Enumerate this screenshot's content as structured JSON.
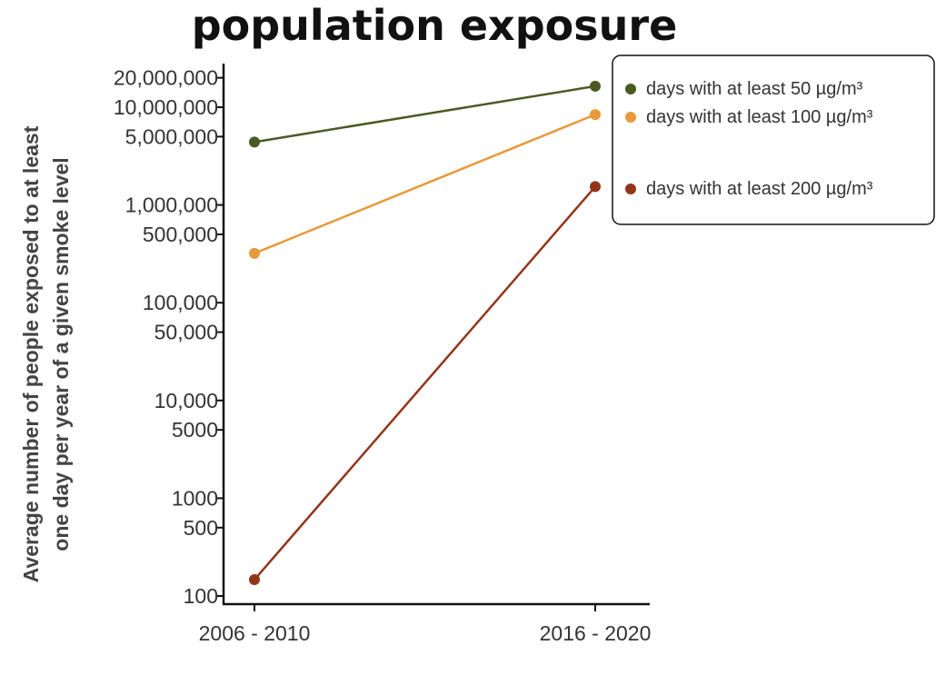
{
  "chart_data": {
    "type": "line",
    "title": "population exposure",
    "xlabel": "",
    "ylabel": "Average number of people exposed to at least one day per year of a given smoke level",
    "ylabel_lines": [
      "Average number of people exposed to at least",
      "one day per year of a given smoke level"
    ],
    "y_scale": "log",
    "ylim": [
      100,
      20000000
    ],
    "y_ticks": [
      {
        "value": 20000000,
        "label": "20,000,000"
      },
      {
        "value": 10000000,
        "label": "10,000,000"
      },
      {
        "value": 5000000,
        "label": "5,000,000"
      },
      {
        "value": 1000000,
        "label": "1,000,000"
      },
      {
        "value": 500000,
        "label": "500,000"
      },
      {
        "value": 100000,
        "label": "100,000"
      },
      {
        "value": 50000,
        "label": "50,000"
      },
      {
        "value": 10000,
        "label": "10,000"
      },
      {
        "value": 5000,
        "label": "5000"
      },
      {
        "value": 1000,
        "label": "1000"
      },
      {
        "value": 500,
        "label": "500"
      },
      {
        "value": 100,
        "label": "100"
      }
    ],
    "categories": [
      "2006 - 2010",
      "2016 - 2020"
    ],
    "grid": false,
    "legend_position": "top-right",
    "series": [
      {
        "name": "days with at least 50 µg/m³",
        "color": "#4b5a23",
        "values": [
          4400000,
          16400000
        ]
      },
      {
        "name": "days with at least 100 µg/m³",
        "color": "#e89a3a",
        "values": [
          320000,
          8400000
        ]
      },
      {
        "name": "days with at least 200 µg/m³",
        "color": "#923519",
        "values": [
          147,
          1540000
        ]
      }
    ]
  }
}
